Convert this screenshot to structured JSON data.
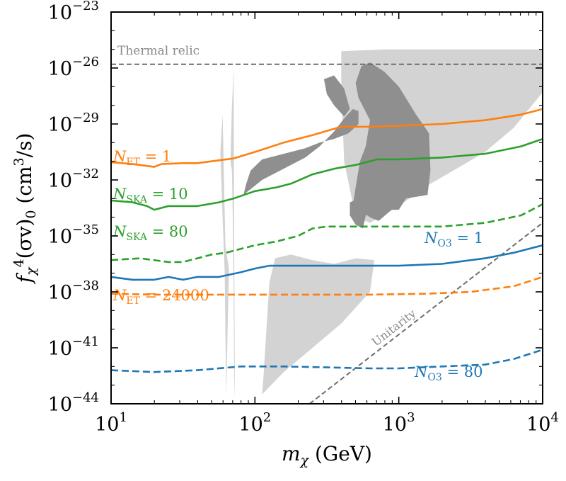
{
  "chart_data": {
    "type": "line",
    "xscale": "log",
    "yscale": "log",
    "xlim": [
      10,
      10000
    ],
    "ylim": [
      1e-44,
      1e-23
    ],
    "xlabel": {
      "base": "m",
      "sub": "χ",
      "rest": " (GeV)"
    },
    "ylabel": {
      "pre": "f",
      "sub": "χ",
      "sup4": "4",
      "mid": "(σv)",
      "sub0": "0",
      "rest": " (cm",
      "sup3": "3",
      "end": "/s)"
    },
    "x_ticks": [
      {
        "value": 10,
        "base": "10",
        "exp": "1"
      },
      {
        "value": 100,
        "base": "10",
        "exp": "2"
      },
      {
        "value": 1000,
        "base": "10",
        "exp": "3"
      },
      {
        "value": 10000,
        "base": "10",
        "exp": "4"
      }
    ],
    "y_ticks": [
      {
        "value": -44,
        "base": "10",
        "exp": "−44"
      },
      {
        "value": -41,
        "base": "10",
        "exp": "−41"
      },
      {
        "value": -38,
        "base": "10",
        "exp": "−38"
      },
      {
        "value": -35,
        "base": "10",
        "exp": "−35"
      },
      {
        "value": -32,
        "base": "10",
        "exp": "−32"
      },
      {
        "value": -29,
        "base": "10",
        "exp": "−29"
      },
      {
        "value": -26,
        "base": "10",
        "exp": "−26"
      },
      {
        "value": -23,
        "base": "10",
        "exp": "−23"
      }
    ],
    "colors": {
      "orange": "#ff7f0e",
      "green": "#2ca02c",
      "blue": "#1f77b4",
      "ref": "#6e6e6e",
      "ref_text": "#888888",
      "light_region": "#d3d3d3",
      "dark_region": "#8f8f8f"
    },
    "series": [
      {
        "key": "et1",
        "label_prefix": "N",
        "label_sub": "ET",
        "label_rest": " = 1",
        "color": "orange",
        "dashed": false,
        "log10_x": [
          1.0,
          1.15,
          1.3,
          1.35,
          1.5,
          1.6,
          1.75,
          1.85,
          2.0,
          2.2,
          2.4,
          2.6,
          2.8,
          3.0,
          3.3,
          3.6,
          3.85,
          4.0
        ],
        "log10_y": [
          -31.05,
          -31.15,
          -31.3,
          -31.15,
          -31.1,
          -31.1,
          -30.95,
          -30.85,
          -30.5,
          -30.0,
          -29.6,
          -29.15,
          -29.15,
          -29.1,
          -29.0,
          -28.8,
          -28.5,
          -28.2
        ]
      },
      {
        "key": "ska10",
        "label_prefix": "N",
        "label_sub": "SKA",
        "label_rest": " = 10",
        "color": "green",
        "dashed": false,
        "log10_x": [
          1.0,
          1.15,
          1.25,
          1.3,
          1.4,
          1.5,
          1.6,
          1.75,
          1.85,
          2.0,
          2.15,
          2.25,
          2.4,
          2.55,
          2.7,
          2.85,
          3.0,
          3.3,
          3.6,
          3.85,
          4.0
        ],
        "log10_y": [
          -33.1,
          -33.2,
          -33.4,
          -33.6,
          -33.4,
          -33.4,
          -33.4,
          -33.2,
          -33.0,
          -32.6,
          -32.4,
          -32.2,
          -31.7,
          -31.4,
          -31.2,
          -30.9,
          -30.9,
          -30.8,
          -30.6,
          -30.2,
          -29.8
        ]
      },
      {
        "key": "ska80",
        "label_prefix": "N",
        "label_sub": "SKA",
        "label_rest": " = 80",
        "color": "green",
        "dashed": true,
        "log10_x": [
          1.0,
          1.2,
          1.4,
          1.5,
          1.6,
          1.7,
          1.8,
          1.9,
          2.0,
          2.15,
          2.3,
          2.4,
          2.5,
          2.7,
          3.0,
          3.3,
          3.6,
          3.85,
          4.0
        ],
        "log10_y": [
          -36.3,
          -36.2,
          -36.4,
          -36.4,
          -36.2,
          -36.0,
          -35.9,
          -35.7,
          -35.5,
          -35.3,
          -35.0,
          -34.6,
          -34.5,
          -34.5,
          -34.5,
          -34.5,
          -34.3,
          -33.9,
          -33.3
        ]
      },
      {
        "key": "o31",
        "label_prefix": "N",
        "label_sub": "O3",
        "label_rest": " = 1",
        "color": "blue",
        "dashed": false,
        "log10_x": [
          1.0,
          1.15,
          1.3,
          1.4,
          1.5,
          1.6,
          1.75,
          1.9,
          2.0,
          2.1,
          2.3,
          2.7,
          3.0,
          3.3,
          3.6,
          3.8,
          4.0
        ],
        "log10_y": [
          -37.2,
          -37.35,
          -37.35,
          -37.2,
          -37.35,
          -37.2,
          -37.2,
          -36.95,
          -36.75,
          -36.6,
          -36.6,
          -36.6,
          -36.6,
          -36.5,
          -36.2,
          -35.9,
          -35.5
        ]
      },
      {
        "key": "et24000",
        "label_prefix": "N",
        "label_sub": "ET",
        "label_rest": " = 24000",
        "color": "orange",
        "dashed": true,
        "log10_x": [
          1.0,
          1.3,
          1.6,
          2.0,
          2.4,
          2.8,
          3.2,
          3.5,
          3.8,
          4.0
        ],
        "log10_y": [
          -38.1,
          -38.15,
          -38.15,
          -38.15,
          -38.15,
          -38.15,
          -38.1,
          -38.0,
          -37.7,
          -37.2
        ]
      },
      {
        "key": "o380",
        "label_prefix": "N",
        "label_sub": "O3",
        "label_rest": " = 80",
        "color": "blue",
        "dashed": true,
        "log10_x": [
          1.0,
          1.3,
          1.6,
          1.9,
          2.2,
          2.5,
          2.8,
          3.0,
          3.3,
          3.6,
          3.8,
          4.0
        ],
        "log10_y": [
          -42.2,
          -42.3,
          -42.2,
          -42.0,
          -42.0,
          -42.05,
          -42.1,
          -42.1,
          -42.0,
          -41.9,
          -41.6,
          -41.1
        ]
      }
    ],
    "reference_lines": [
      {
        "key": "thermal",
        "text": "Thermal relic",
        "log10_x": [
          1.0,
          4.0
        ],
        "log10_y": [
          -25.8,
          -25.8
        ]
      },
      {
        "key": "unitarity",
        "text": "Unitarity",
        "log10_x": [
          2.38,
          4.0
        ],
        "log10_y": [
          -44.0,
          -34.3
        ]
      }
    ],
    "regions": [
      {
        "shade": "light",
        "log10_x": [
          1.76,
          1.775,
          1.795,
          1.82,
          1.81,
          1.8,
          1.79,
          1.775
        ],
        "log10_y": [
          -30.5,
          -28.5,
          -35.5,
          -36.8,
          -40.0,
          -43.6,
          -37.0,
          -34.0
        ]
      },
      {
        "shade": "light",
        "log10_x": [
          1.83,
          1.84,
          1.845,
          1.852,
          1.855,
          1.86,
          1.856,
          1.852,
          1.846,
          1.84
        ],
        "log10_y": [
          -31.0,
          -28.0,
          -27.3,
          -26.0,
          -35.0,
          -42.5,
          -43.7,
          -38.0,
          -34.0,
          -31.5
        ]
      },
      {
        "shade": "light",
        "log10_x": [
          2.05,
          2.2,
          2.4,
          2.6,
          2.8,
          2.83,
          2.7,
          2.55,
          2.4,
          2.25,
          2.14,
          2.1,
          2.08,
          2.06
        ],
        "log10_y": [
          -43.5,
          -42.3,
          -41.0,
          -39.7,
          -38.0,
          -36.3,
          -36.2,
          -36.5,
          -36.3,
          -36.0,
          -36.2,
          -37.5,
          -40.0,
          -42.5
        ]
      },
      {
        "shade": "light",
        "log10_x": [
          2.6,
          2.9,
          3.3,
          3.6,
          4.0,
          4.0,
          3.8,
          3.6,
          3.4,
          3.2,
          3.0,
          2.8,
          2.7,
          2.62,
          2.6
        ],
        "log10_y": [
          -25.1,
          -25.0,
          -25.0,
          -25.0,
          -25.0,
          -27.3,
          -29.2,
          -30.5,
          -31.4,
          -32.3,
          -33.4,
          -34.3,
          -34.0,
          -31.0,
          -27.0
        ]
      },
      {
        "shade": "light",
        "log10_x": [
          2.65,
          2.72,
          2.78,
          2.9,
          2.96,
          2.85,
          2.8,
          2.72,
          2.66,
          2.63
        ],
        "log10_y": [
          -25.5,
          -25.6,
          -26.5,
          -27.0,
          -27.8,
          -28.2,
          -28.3,
          -28.0,
          -27.2,
          -26.2
        ]
      },
      {
        "shade": "dark",
        "log10_x": [
          2.68,
          2.8,
          2.86,
          2.95,
          3.0,
          3.05,
          3.2,
          3.22,
          3.21,
          3.12,
          3.0,
          2.9,
          2.8,
          2.74,
          2.7,
          2.72,
          2.8,
          2.77,
          2.73,
          2.7
        ],
        "log10_y": [
          -33.4,
          -34.0,
          -34.2,
          -33.6,
          -33.6,
          -33.0,
          -32.8,
          -31.5,
          -29.5,
          -28.5,
          -27.0,
          -26.2,
          -25.7,
          -25.9,
          -26.8,
          -27.6,
          -28.8,
          -30.2,
          -31.0,
          -32.4
        ]
      },
      {
        "shade": "dark",
        "log10_x": [
          1.92,
          2.05,
          2.25,
          2.35,
          2.45,
          2.55,
          2.62,
          2.68,
          2.72,
          2.72,
          2.65,
          2.55,
          2.45,
          2.35,
          2.2,
          2.05,
          1.97,
          1.94
        ],
        "log10_y": [
          -32.8,
          -32.0,
          -31.2,
          -30.8,
          -30.2,
          -29.4,
          -28.7,
          -28.2,
          -28.3,
          -29.0,
          -29.5,
          -29.8,
          -30.0,
          -30.3,
          -30.6,
          -30.9,
          -31.5,
          -32.2
        ]
      },
      {
        "shade": "dark",
        "log10_x": [
          2.48,
          2.55,
          2.62,
          2.66,
          2.62,
          2.55,
          2.5
        ],
        "log10_y": [
          -26.6,
          -26.4,
          -27.1,
          -28.2,
          -28.6,
          -28.0,
          -27.4
        ]
      },
      {
        "shade": "dark",
        "log10_x": [
          2.66,
          2.72,
          2.78,
          2.75,
          2.7,
          2.66
        ],
        "log10_y": [
          -33.2,
          -33.0,
          -33.6,
          -34.6,
          -34.4,
          -33.9
        ]
      }
    ]
  }
}
